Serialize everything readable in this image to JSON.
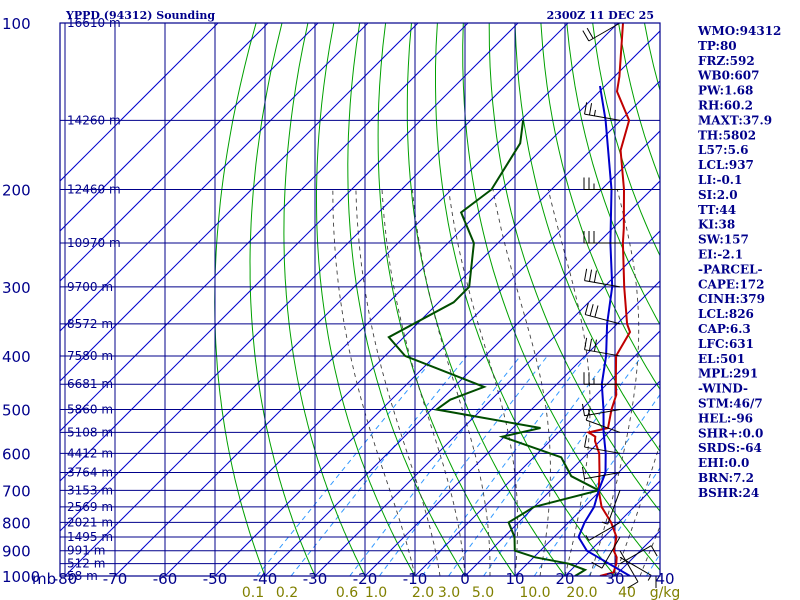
{
  "header": {
    "station": "YPPD (94312) Sounding",
    "time": "2300Z 11 DEC 25"
  },
  "colors": {
    "frame": "#00008b",
    "isotherm": "#0000cd",
    "dry_adiabat": "#00a000",
    "moist_adiabat": "#404040",
    "mixing_ratio": "#3399ff",
    "temperature": "#c00000",
    "dewpoint": "#004d00",
    "parcel": "#0000cc",
    "mixing_ratio_label": "#808000",
    "index_text": "#00008b"
  },
  "indices": [
    "WMO:94312",
    "TP:80",
    "FRZ:592",
    "WB0:607",
    "PW:1.68",
    "RH:60.2",
    "MAXT:37.9",
    "TH:5802",
    "L57:5.6",
    "LCL:937",
    "LI:-0.1",
    "SI:2.0",
    "TT:44",
    "KI:38",
    "SW:157",
    "EI:-2.1",
    "-PARCEL-",
    "CAPE:172",
    "CINH:379",
    "LCL:826",
    "CAP:6.3",
    "LFC:631",
    "EL:501",
    "MPL:291",
    "-WIND-",
    "STM:46/7",
    "HEL:-96",
    "SHR+:0.0",
    "SRDS:-64",
    "EHI:0.0",
    "BRN:7.2",
    "BSHR:24"
  ],
  "chart_data": {
    "type": "skew-t",
    "title": "YPPD (94312) Sounding",
    "subtitle": "2300Z 11 DEC 25",
    "xlabel": "mb",
    "x_axis_unit": "°C",
    "mixing_ratio_unit": "g/kg",
    "x_range": [
      -80,
      40
    ],
    "pressure_range_mb": [
      1000,
      100
    ],
    "pressure_ticks": [
      1000,
      900,
      800,
      700,
      600,
      500,
      400,
      300,
      200,
      100
    ],
    "pressure_tick_labels": [
      "1000",
      "900",
      "800",
      "700",
      "600",
      "500",
      "400",
      "300",
      "200",
      "100"
    ],
    "temperature_ticks": [
      -80,
      -70,
      -60,
      -50,
      -40,
      -30,
      -20,
      -10,
      0,
      10,
      20,
      30,
      40
    ],
    "temperature_tick_labels": [
      "-80",
      "-70",
      "-60",
      "-50",
      "-40",
      "-30",
      "-20",
      "-10",
      "0",
      "10",
      "20",
      "30",
      "40"
    ],
    "mixing_ratio_labels": [
      "0.1",
      "0.2",
      "0.6",
      "1.0",
      "2.0",
      "3.0",
      "5.0",
      "10.0",
      "20.0",
      "40",
      "g/kg"
    ],
    "height_labels": [
      {
        "p": 100,
        "label": "16610 m"
      },
      {
        "p": 150,
        "label": "14260 m"
      },
      {
        "p": 200,
        "label": "12460 m"
      },
      {
        "p": 250,
        "label": "10970 m"
      },
      {
        "p": 300,
        "label": "9700 m"
      },
      {
        "p": 350,
        "label": "8572 m"
      },
      {
        "p": 400,
        "label": "7580 m"
      },
      {
        "p": 450,
        "label": "6681 m"
      },
      {
        "p": 500,
        "label": "5860 m"
      },
      {
        "p": 550,
        "label": "5108 m"
      },
      {
        "p": 600,
        "label": "4412 m"
      },
      {
        "p": 650,
        "label": "3764 m"
      },
      {
        "p": 700,
        "label": "3153 m"
      },
      {
        "p": 750,
        "label": "2569 m"
      },
      {
        "p": 800,
        "label": "2021 m"
      },
      {
        "p": 850,
        "label": "1495 m"
      },
      {
        "p": 900,
        "label": "991 m"
      },
      {
        "p": 950,
        "label": "512 m"
      },
      {
        "p": 1000,
        "label": "58 m"
      }
    ],
    "series": [
      {
        "name": "Temperature",
        "points": [
          [
            1000,
            27
          ],
          [
            985,
            29
          ],
          [
            950,
            27.8
          ],
          [
            925,
            26.6
          ],
          [
            900,
            24.7
          ],
          [
            850,
            22.5
          ],
          [
            800,
            18.5
          ],
          [
            750,
            13.5
          ],
          [
            700,
            9.6
          ],
          [
            650,
            6.2
          ],
          [
            600,
            2.3
          ],
          [
            570,
            -1.0
          ],
          [
            560,
            -1.8
          ],
          [
            550,
            -4.0
          ],
          [
            540,
            -1.0
          ],
          [
            500,
            -4.0
          ],
          [
            470,
            -6.0
          ],
          [
            450,
            -8.2
          ],
          [
            400,
            -13.8
          ],
          [
            362,
            -15.8
          ],
          [
            350,
            -18.0
          ],
          [
            300,
            -26.0
          ],
          [
            250,
            -35.0
          ],
          [
            235,
            -37.8
          ],
          [
            200,
            -45.5
          ],
          [
            170,
            -54.0
          ],
          [
            150,
            -58.3
          ],
          [
            133,
            -66.5
          ],
          [
            125,
            -69.0
          ],
          [
            100,
            -79.0
          ]
        ]
      },
      {
        "name": "Dewpoint",
        "points": [
          [
            1000,
            22
          ],
          [
            985,
            22.5
          ],
          [
            975,
            22.8
          ],
          [
            950,
            18.3
          ],
          [
            925,
            10.3
          ],
          [
            900,
            4.9
          ],
          [
            850,
            2.1
          ],
          [
            800,
            -2.0
          ],
          [
            750,
            0.0
          ],
          [
            700,
            9.6
          ],
          [
            660,
            1.3
          ],
          [
            610,
            -4.5
          ],
          [
            560,
            -20.4
          ],
          [
            540,
            -14.5
          ],
          [
            500,
            -39.0
          ],
          [
            480,
            -38.2
          ],
          [
            455,
            -34.0
          ],
          [
            400,
            -56.0
          ],
          [
            370,
            -63.0
          ],
          [
            320,
            -57.0
          ],
          [
            300,
            -57.0
          ],
          [
            250,
            -64.8
          ],
          [
            220,
            -73.5
          ],
          [
            200,
            -72.0
          ],
          [
            165,
            -75.5
          ],
          [
            150,
            -79.5
          ]
        ]
      },
      {
        "name": "Parcel",
        "points": [
          [
            1000,
            33.0
          ],
          [
            900,
            19.3
          ],
          [
            850,
            14.9
          ],
          [
            800,
            13.2
          ],
          [
            750,
            12.0
          ],
          [
            700,
            9.6
          ],
          [
            650,
            7.4
          ],
          [
            600,
            3.6
          ],
          [
            550,
            -1.0
          ],
          [
            500,
            -5.6
          ],
          [
            450,
            -11.0
          ],
          [
            400,
            -15.8
          ],
          [
            350,
            -22.0
          ],
          [
            300,
            -28.4
          ],
          [
            250,
            -37.5
          ],
          [
            200,
            -48.0
          ],
          [
            150,
            -63.0
          ],
          [
            130,
            -71.0
          ]
        ]
      }
    ],
    "wind_barbs": [
      {
        "p": 1000,
        "dir": 90,
        "spd": 10
      },
      {
        "p": 950,
        "dir": 60,
        "spd": 10
      },
      {
        "p": 925,
        "dir": 120,
        "spd": 5
      },
      {
        "p": 900,
        "dir": 150,
        "spd": 10
      },
      {
        "p": 850,
        "dir": 210,
        "spd": 10
      },
      {
        "p": 800,
        "dir": 240,
        "spd": 5
      },
      {
        "p": 700,
        "dir": 200,
        "spd": 5
      },
      {
        "p": 650,
        "dir": 260,
        "spd": 10
      },
      {
        "p": 600,
        "dir": 280,
        "spd": 10
      },
      {
        "p": 550,
        "dir": 290,
        "spd": 10
      },
      {
        "p": 500,
        "dir": 260,
        "spd": 15
      },
      {
        "p": 450,
        "dir": 270,
        "spd": 25
      },
      {
        "p": 400,
        "dir": 280,
        "spd": 30
      },
      {
        "p": 350,
        "dir": 285,
        "spd": 30
      },
      {
        "p": 300,
        "dir": 280,
        "spd": 30
      },
      {
        "p": 250,
        "dir": 270,
        "spd": 30
      },
      {
        "p": 200,
        "dir": 270,
        "spd": 25
      },
      {
        "p": 150,
        "dir": 280,
        "spd": 25
      },
      {
        "p": 100,
        "dir": 240,
        "spd": 20
      }
    ],
    "grid": true,
    "legend": "none"
  }
}
